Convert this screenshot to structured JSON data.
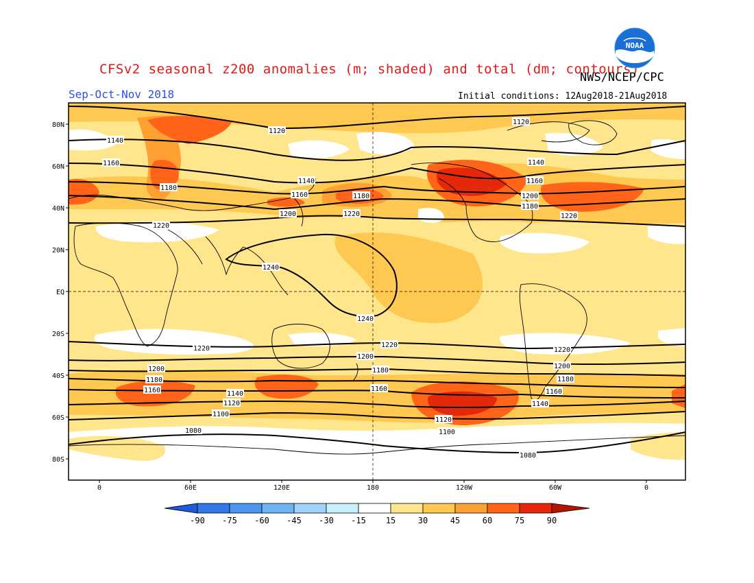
{
  "header": {
    "title": "CFSv2 seasonal z200 anomalies (m; shaded) and total (dm; contours)",
    "season": "Sep-Oct-Nov 2018",
    "initial_conditions": "Initial conditions: 12Aug2018-21Aug2018",
    "agency": "NWS/NCEP/CPC",
    "logo_text": "NOAA"
  },
  "map": {
    "lat_labels": [
      "80N",
      "60N",
      "40N",
      "20N",
      "EQ",
      "20S",
      "40S",
      "60S",
      "80S"
    ],
    "lon_labels": [
      "0",
      "60E",
      "120E",
      "180",
      "120W",
      "60W",
      "0"
    ]
  },
  "contour_labels": [
    {
      "text": "1120"
    },
    {
      "text": "1120"
    },
    {
      "text": "1140"
    },
    {
      "text": "1140"
    },
    {
      "text": "1160"
    },
    {
      "text": "1140"
    },
    {
      "text": "1160"
    },
    {
      "text": "1180"
    },
    {
      "text": "1160"
    },
    {
      "text": "1180"
    },
    {
      "text": "1200"
    },
    {
      "text": "1180"
    },
    {
      "text": "1220"
    },
    {
      "text": "1200"
    },
    {
      "text": "1220"
    },
    {
      "text": "1220"
    },
    {
      "text": "1240"
    },
    {
      "text": "1240"
    },
    {
      "text": "1220"
    },
    {
      "text": "1220"
    },
    {
      "text": "1220"
    },
    {
      "text": "1200"
    },
    {
      "text": "1200"
    },
    {
      "text": "1200"
    },
    {
      "text": "1180"
    },
    {
      "text": "1180"
    },
    {
      "text": "1180"
    },
    {
      "text": "1160"
    },
    {
      "text": "1160"
    },
    {
      "text": "1160"
    },
    {
      "text": "1140"
    },
    {
      "text": "1140"
    },
    {
      "text": "1120"
    },
    {
      "text": "1120"
    },
    {
      "text": "1100"
    },
    {
      "text": "1100"
    },
    {
      "text": "1080"
    },
    {
      "text": "1080"
    }
  ],
  "colorbar": {
    "labels": [
      "-90",
      "-75",
      "-60",
      "-45",
      "-30",
      "-15",
      "15",
      "30",
      "45",
      "60",
      "75",
      "90"
    ],
    "colors": [
      "#1e5adc",
      "#3278e6",
      "#4b96f0",
      "#6eb4f5",
      "#a0d2fa",
      "#c8f0fa",
      "#ffffff",
      "#ffe68c",
      "#ffc850",
      "#ffa032",
      "#ff6419",
      "#e6280a",
      "#b41400"
    ]
  },
  "colors": {
    "title": "#e01818",
    "season": "#2e50e6",
    "base_fill": "#ffe68c"
  }
}
